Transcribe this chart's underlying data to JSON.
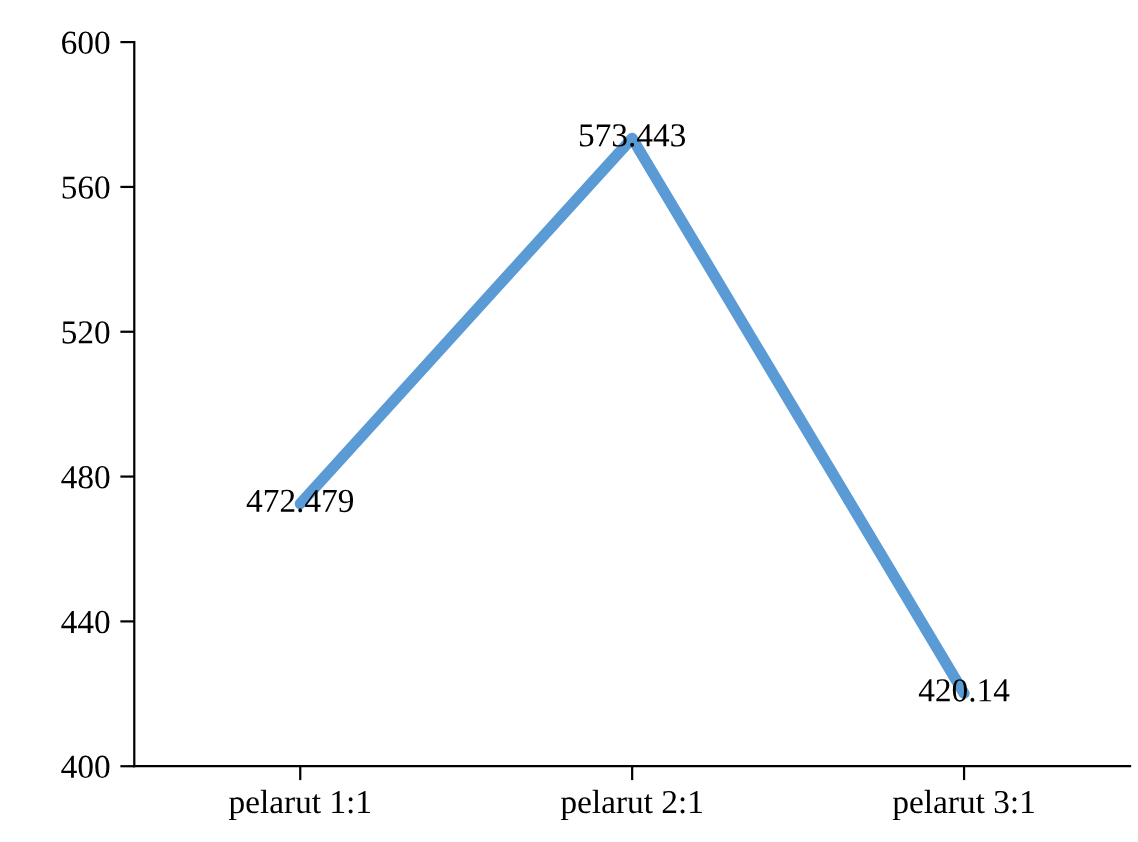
{
  "chart_data": {
    "type": "line",
    "categories": [
      "pelarut 1:1",
      "pelarut 2:1",
      "pelarut 3:1"
    ],
    "series": [
      {
        "color": "#5b9bd5",
        "values": [
          472.479,
          573.443,
          420.14
        ]
      }
    ],
    "ylim": [
      400,
      600
    ],
    "yticks": [
      400,
      440,
      480,
      520,
      560,
      600
    ],
    "grid": false,
    "legend": false,
    "marker": "none",
    "line_style": "solid",
    "data_labels": true
  }
}
